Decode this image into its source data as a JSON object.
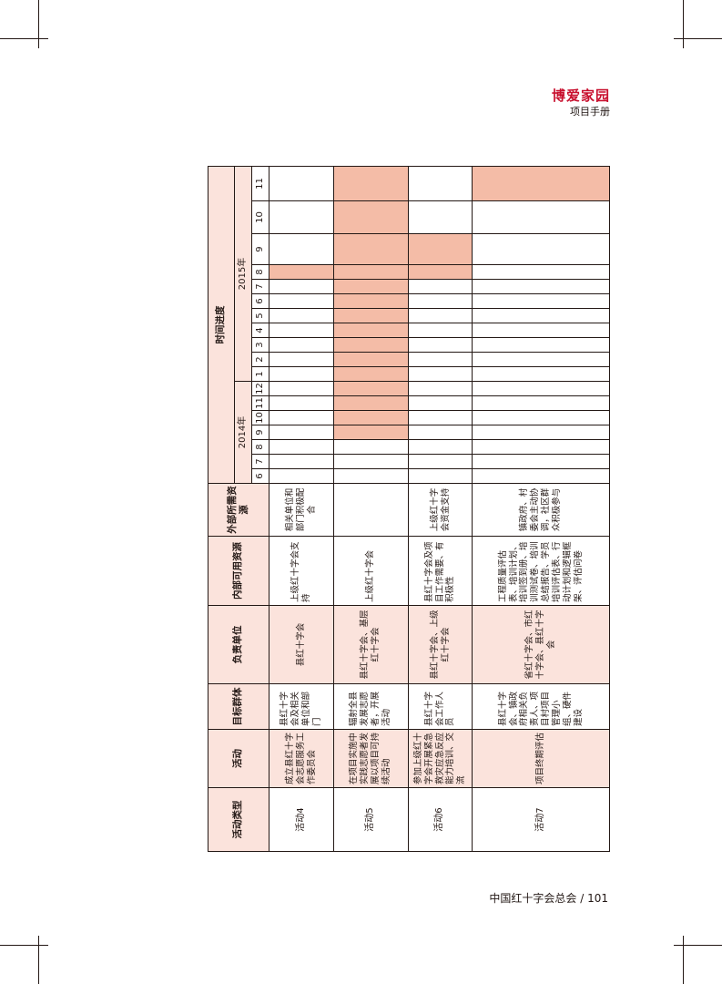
{
  "header": {
    "title": "博爱家园",
    "subtitle": "项目手册"
  },
  "footer": {
    "text": "中国红十字会总会 / 101"
  },
  "colors": {
    "gantt_fill": "#f4bca7",
    "header_fill": "#fbe3dc",
    "brand": "#c8102e"
  },
  "table": {
    "headers": {
      "type": "活动类型",
      "activity": "活动",
      "target": "目标群体",
      "unit": "负责单位",
      "internal": "内部可用资源",
      "external": "外部所需资源",
      "timeline": "时间进度",
      "year2014": "2014年",
      "year2015": "2015年"
    },
    "months_2014": [
      "6",
      "7",
      "8",
      "9",
      "10",
      "11",
      "12"
    ],
    "months_2015": [
      "1",
      "2",
      "3",
      "4",
      "5",
      "6",
      "7",
      "8",
      "9",
      "10",
      "11"
    ],
    "rows": [
      {
        "type": "活动4",
        "activity": "成立县红十字会志愿服务工作委员会",
        "target": "县红十字会及相关单位和部门",
        "unit": "县红十字会",
        "internal": "上级红十字会支持",
        "external": "相关单位和部门积极配合"
      },
      {
        "type": "活动5",
        "activity": "在项目实施中实践志愿者发展以项目可持续活动",
        "target": "辐射全县发展志愿者，开展活动",
        "unit": "县红十字会、基层红十字会",
        "internal": "上级红十字会",
        "external": ""
      },
      {
        "type": "活动6",
        "activity": "参加上级红十字会开展紧急救灾应急反应能力培训、交流",
        "target": "县红十字会工作人员",
        "unit": "县红十字会、上级红十字会",
        "internal": "县红十字会及项目工作需要、有积极性",
        "external": "上级红十字会资金支持"
      },
      {
        "type": "活动7",
        "activity": "项目终期评估",
        "target": "县红十字会、镇政府相关负责人、项目村项目管理小组、硬件建设",
        "unit": "省红十字会、市红十字会、县红十字会",
        "internal": "工程质量评估表、培训计划、培训签到册、培训测试卷、培训总结报告、学员培训评估表、行动计划和逻辑框架、评估问卷",
        "external": "镇政府、村委会主动协调，社区群众积极参与"
      }
    ],
    "gantt": [
      {
        "fill": [
          "2015-8"
        ]
      },
      {
        "fill": [
          "2014-9",
          "2014-10",
          "2014-11",
          "2014-12",
          "2015-1",
          "2015-2",
          "2015-3",
          "2015-4",
          "2015-5",
          "2015-6",
          "2015-7",
          "2015-8",
          "2015-9",
          "2015-10",
          "2015-11"
        ]
      },
      {
        "fill": [
          "2015-8",
          "2015-9"
        ]
      },
      {
        "fill": [
          "2015-11"
        ]
      }
    ]
  }
}
